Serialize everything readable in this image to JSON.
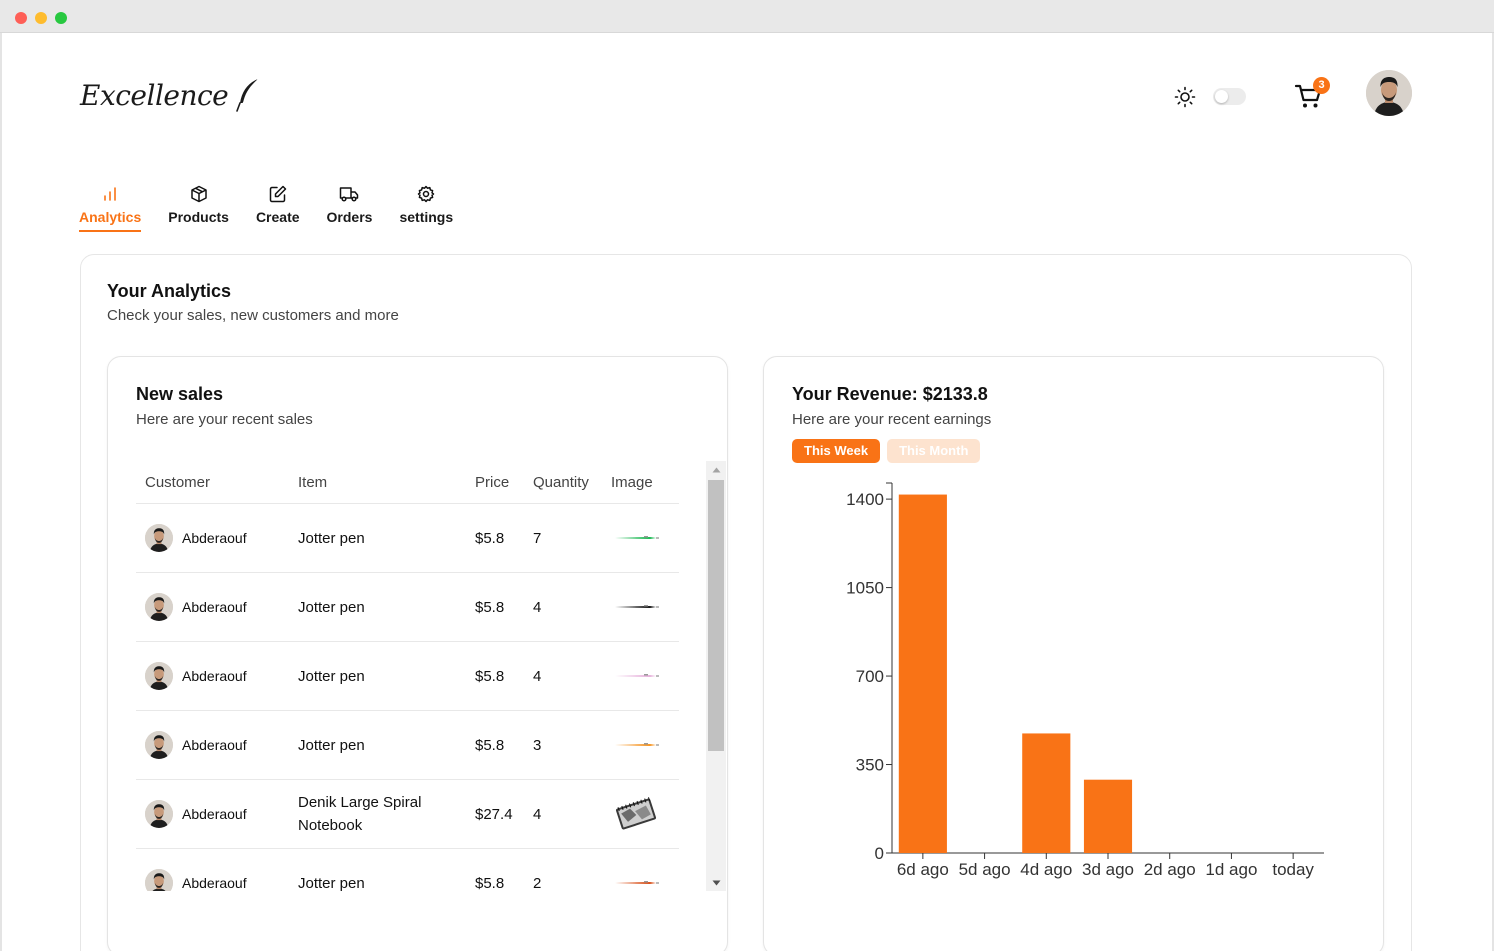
{
  "window": {
    "traffic_lights": [
      "close",
      "minimize",
      "maximize"
    ]
  },
  "header": {
    "logo_text": "Excellence",
    "cart_count": "3",
    "theme_toggle_on": false,
    "icons": {
      "theme": "sun-icon",
      "cart": "cart-icon",
      "profile": "avatar"
    }
  },
  "nav": {
    "tabs": [
      {
        "label": "Analytics",
        "icon": "bar-chart-icon",
        "active": true
      },
      {
        "label": "Products",
        "icon": "box-icon",
        "active": false
      },
      {
        "label": "Create",
        "icon": "edit-icon",
        "active": false
      },
      {
        "label": "Orders",
        "icon": "truck-icon",
        "active": false
      },
      {
        "label": "settings",
        "icon": "gear-icon",
        "active": false
      }
    ]
  },
  "analytics": {
    "title": "Your Analytics",
    "subtitle": "Check your sales, new customers and more"
  },
  "sales": {
    "title": "New sales",
    "subtitle": "Here are your recent sales",
    "columns": [
      "Customer",
      "Item",
      "Price",
      "Quantity",
      "Image"
    ],
    "rows": [
      {
        "customer": "Abderaouf",
        "item": "Jotter pen",
        "price": "$5.8",
        "quantity": "7",
        "image": "pen-green"
      },
      {
        "customer": "Abderaouf",
        "item": "Jotter pen",
        "price": "$5.8",
        "quantity": "4",
        "image": "pen-black"
      },
      {
        "customer": "Abderaouf",
        "item": "Jotter pen",
        "price": "$5.8",
        "quantity": "4",
        "image": "pen-pink"
      },
      {
        "customer": "Abderaouf",
        "item": "Jotter pen",
        "price": "$5.8",
        "quantity": "3",
        "image": "pen-orange"
      },
      {
        "customer": "Abderaouf",
        "item": "Denik Large Spiral Notebook",
        "price": "$27.4",
        "quantity": "4",
        "image": "notebook"
      },
      {
        "customer": "Abderaouf",
        "item": "Jotter pen",
        "price": "$5.8",
        "quantity": "2",
        "image": "pen-red"
      }
    ]
  },
  "revenue": {
    "title": "Your Revenue: $2133.8",
    "subtitle": "Here are your recent earnings",
    "ranges": [
      "This Week",
      "This Month"
    ],
    "active_range": "This Week"
  },
  "colors": {
    "accent": "#f97316",
    "accent_light": "#fde3cf"
  },
  "chart_data": {
    "type": "bar",
    "categories": [
      "6d ago",
      "5d ago",
      "4d ago",
      "3d ago",
      "2d ago",
      "1d ago",
      "today"
    ],
    "values": [
      1418,
      0,
      473,
      290,
      0,
      0,
      0
    ],
    "yticks": [
      0,
      350,
      700,
      1050,
      1400
    ],
    "ylim": [
      0,
      1440
    ],
    "xlabel": "",
    "ylabel": "",
    "title": "",
    "grid": false,
    "color": "#f97316"
  }
}
